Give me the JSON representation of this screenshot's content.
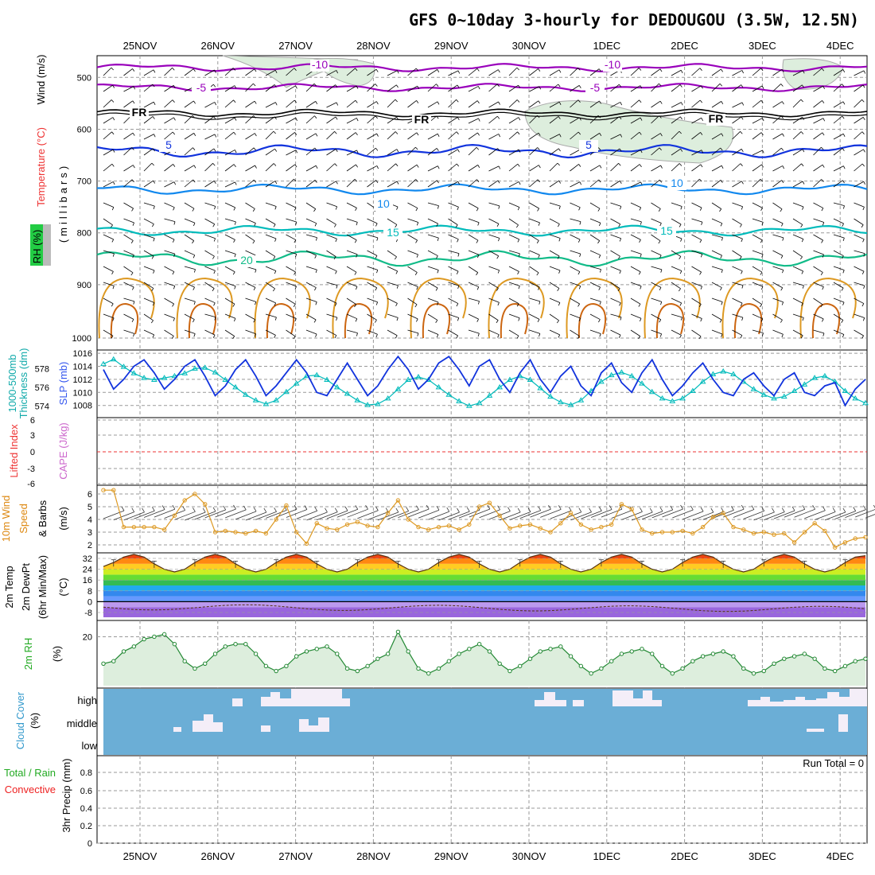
{
  "title": "GFS 0~10day 3-hourly for DEDOUGOU (3.5W, 12.5N)",
  "dates": [
    "25NOV",
    "26NOV",
    "27NOV",
    "28NOV",
    "29NOV",
    "30NOV",
    "1DEC",
    "2DEC",
    "3DEC",
    "4DEC"
  ],
  "colors": {
    "purple": "#9900bb",
    "blue": "#1133dd",
    "lightblue": "#1188ee",
    "teal": "#00bbbb",
    "green": "#11bb88",
    "orange": "#dd9922",
    "darkorange": "#cc6611",
    "rh_fill": "#ddeedd",
    "cloud": "#6baed6",
    "cloud_clear": "#f4eef8",
    "precip_green": "#22aa22",
    "precip_red": "#ee2222"
  },
  "panels": {
    "upper": {
      "axis_labels": [
        {
          "text": "Wind (m/s)",
          "color": "#000000"
        },
        {
          "text": "Temperature (°C)",
          "color": "#ee3333"
        },
        {
          "text": "RH (%)",
          "color": "#000000"
        }
      ],
      "ylabel": "(millibars)",
      "yticks": [
        500,
        600,
        700,
        800,
        900,
        1000
      ],
      "contour_labels": [
        {
          "text": "-10",
          "color": "purple"
        },
        {
          "text": "-10",
          "color": "purple"
        },
        {
          "text": "-5",
          "color": "purple"
        },
        {
          "text": "-5",
          "color": "purple"
        },
        {
          "text": "FR",
          "color": "black"
        },
        {
          "text": "FR",
          "color": "black"
        },
        {
          "text": "FR",
          "color": "black"
        },
        {
          "text": "5",
          "color": "blue"
        },
        {
          "text": "5",
          "color": "blue"
        },
        {
          "text": "10",
          "color": "lightblue"
        },
        {
          "text": "10",
          "color": "lightblue"
        },
        {
          "text": "15",
          "color": "teal"
        },
        {
          "text": "15",
          "color": "teal"
        },
        {
          "text": "20",
          "color": "green"
        }
      ]
    },
    "slp": {
      "axis_labels": [
        {
          "text": "1000-500mb",
          "color": "#11aaaa"
        },
        {
          "text": "Thickness (dm)",
          "color": "#11aaaa"
        },
        {
          "text": "SLP (mb)",
          "color": "#3355ee"
        }
      ],
      "left_ticks": [
        574,
        576,
        578
      ],
      "right_ticks": [
        1008,
        1010,
        1012,
        1014,
        1016
      ]
    },
    "cape": {
      "axis_labels": [
        {
          "text": "Lifted Index",
          "color": "#ee3333"
        },
        {
          "text": "CAPE (J/kg)",
          "color": "#cc66cc"
        }
      ],
      "yticks": [
        "6",
        "3",
        "0",
        "-3",
        "-6"
      ]
    },
    "wind10": {
      "axis_labels": [
        {
          "text": "10m Wind",
          "color": "#dd8811"
        },
        {
          "text": "Speed",
          "color": "#dd8811"
        },
        {
          "text": "& Barbs",
          "color": "#000000"
        },
        {
          "text": "(m/s)",
          "color": "#000000"
        }
      ],
      "yticks": [
        2,
        3,
        4,
        5,
        6
      ]
    },
    "temp": {
      "axis_labels": [
        {
          "text": "2m Temp",
          "color": "#000000"
        },
        {
          "text": "2m DewPt",
          "color": "#000000"
        },
        {
          "text": "(6hr Min/Max)",
          "color": "#000000"
        },
        {
          "text": "(°C)",
          "color": "#000000"
        }
      ],
      "yticks": [
        "-8",
        "0",
        "8",
        "16",
        "24",
        "32"
      ]
    },
    "rh": {
      "axis_labels": [
        {
          "text": "2m RH",
          "color": "#22aa22"
        },
        {
          "text": "(%)",
          "color": "#000000"
        }
      ],
      "yticks": [
        20
      ]
    },
    "cloud": {
      "axis_labels": [
        {
          "text": "Cloud Cover",
          "color": "#3399cc"
        },
        {
          "text": "(%)",
          "color": "#000000"
        }
      ],
      "levels": [
        "high",
        "middle",
        "low"
      ]
    },
    "precip": {
      "axis_labels": [
        {
          "text": "Total / Rain",
          "color": "#22aa22"
        },
        {
          "text": "Convective",
          "color": "#ee2222"
        },
        {
          "text": "3hr Precip (mm)",
          "color": "#000000"
        }
      ],
      "yticks": [
        "0",
        "0.2",
        "0.4",
        "0.6",
        "0.8"
      ],
      "run_total": "Run Total = 0"
    }
  },
  "chart_data": {
    "type": "line",
    "x": [
      "25NOV 00",
      "25NOV 03",
      "25NOV 06",
      "25NOV 09",
      "25NOV 12",
      "25NOV 15",
      "25NOV 18",
      "25NOV 21",
      "26NOV 00",
      "26NOV 03",
      "26NOV 06",
      "26NOV 09",
      "26NOV 12",
      "26NOV 15",
      "26NOV 18",
      "26NOV 21",
      "27NOV 00",
      "27NOV 03",
      "27NOV 06",
      "27NOV 09",
      "27NOV 12",
      "27NOV 15",
      "27NOV 18",
      "27NOV 21",
      "28NOV 00",
      "28NOV 03",
      "28NOV 06",
      "28NOV 09",
      "28NOV 12",
      "28NOV 15",
      "28NOV 18",
      "28NOV 21",
      "29NOV 00",
      "29NOV 03",
      "29NOV 06",
      "29NOV 09",
      "29NOV 12",
      "29NOV 15",
      "29NOV 18",
      "29NOV 21",
      "30NOV 00",
      "30NOV 03",
      "30NOV 06",
      "30NOV 09",
      "30NOV 12",
      "30NOV 15",
      "30NOV 18",
      "30NOV 21",
      "1DEC 00",
      "1DEC 03",
      "1DEC 06",
      "1DEC 09",
      "1DEC 12",
      "1DEC 15",
      "1DEC 18",
      "1DEC 21",
      "2DEC 00",
      "2DEC 03",
      "2DEC 06",
      "2DEC 09",
      "2DEC 12",
      "2DEC 15",
      "2DEC 18",
      "2DEC 21",
      "3DEC 00",
      "3DEC 03",
      "3DEC 06",
      "3DEC 09",
      "3DEC 12",
      "3DEC 15",
      "3DEC 18",
      "3DEC 21",
      "4DEC 00",
      "4DEC 03",
      "4DEC 06",
      "4DEC 09"
    ],
    "series": [
      {
        "name": "SLP (mb)",
        "values": [
          1013.5,
          1010.5,
          1012,
          1014,
          1015,
          1013,
          1010.5,
          1012,
          1014,
          1015,
          1012.5,
          1009.5,
          1011,
          1013.5,
          1015,
          1012.5,
          1009.5,
          1011,
          1013,
          1015,
          1013,
          1010,
          1009.5,
          1012,
          1014.5,
          1012,
          1009.5,
          1011,
          1013.5,
          1015.5,
          1013.5,
          1010.5,
          1012,
          1014.5,
          1015.5,
          1013.5,
          1011,
          1014,
          1015,
          1012,
          1010,
          1013,
          1015,
          1012,
          1010,
          1012.5,
          1014,
          1011,
          1009.5,
          1013,
          1014.5,
          1011.5,
          1010,
          1013,
          1015,
          1012,
          1009.5,
          1011,
          1013,
          1014.5,
          1012,
          1010,
          1009.5,
          1012,
          1013,
          1011,
          1009.5,
          1012,
          1013,
          1010,
          1009.5,
          1011,
          1011.5,
          1008,
          1010.5,
          1012
        ]
      },
      {
        "name": "1000-500mb Thickness (dm)",
        "values": [
          578.5,
          579,
          578.2,
          577.5,
          577,
          576.8,
          577,
          577.2,
          577.5,
          578,
          578.1,
          577.6,
          576.8,
          576,
          575.2,
          574.6,
          574.2,
          574.6,
          575.5,
          576.4,
          577.2,
          577.3,
          576.8,
          576,
          575.3,
          574.6,
          574.1,
          574.2,
          574.8,
          575.8,
          576.8,
          577.1,
          576.8,
          576,
          575.2,
          574.5,
          574.0,
          574.3,
          575.1,
          576.0,
          576.8,
          577.2,
          576.8,
          575.9,
          575.0,
          574.4,
          574.1,
          574.6,
          575.6,
          576.6,
          577.3,
          577.6,
          577.2,
          576.4,
          575.5,
          574.8,
          574.5,
          574.8,
          575.6,
          576.6,
          577.4,
          577.7,
          577.4,
          576.6,
          575.8,
          575.2,
          574.8,
          575.0,
          575.6,
          576.3,
          577.0,
          577.2,
          576.6,
          575.6,
          574.8,
          574.3
        ]
      },
      {
        "name": "10m Wind Speed (m/s)",
        "values": [
          6.3,
          6.3,
          3.4,
          3.4,
          3.4,
          3.4,
          3.2,
          4.3,
          5.5,
          6.0,
          5.2,
          3.0,
          3.1,
          3.0,
          2.9,
          3.1,
          2.9,
          4.0,
          5.1,
          3.0,
          2.1,
          3.7,
          3.3,
          3.2,
          3.6,
          3.8,
          3.5,
          3.4,
          4.5,
          5.5,
          4.0,
          3.4,
          3.2,
          3.4,
          3.5,
          3.2,
          3.6,
          5.0,
          5.3,
          4.3,
          3.3,
          3.5,
          3.6,
          3.3,
          3.0,
          3.7,
          4.5,
          3.6,
          3.2,
          3.4,
          3.6,
          5.2,
          4.8,
          3.2,
          2.9,
          3.0,
          3.0,
          3.1,
          2.9,
          3.4,
          4.2,
          4.5,
          3.4,
          3.2,
          2.9,
          3.0,
          2.8,
          2.9,
          2.2,
          3.0,
          3.7,
          3.1,
          1.8,
          2.2,
          2.5,
          2.6
        ]
      },
      {
        "name": "2m Temp (°C)",
        "values": [
          26,
          29,
          33,
          35,
          33,
          28,
          24,
          22,
          24,
          29,
          33,
          35,
          33,
          28,
          24,
          22,
          24,
          29,
          33,
          35,
          33,
          28,
          24,
          22,
          24,
          29,
          33,
          35,
          33,
          28,
          24,
          22,
          24,
          29,
          33,
          35,
          33,
          28,
          24,
          22,
          24,
          29,
          33,
          35,
          33,
          28,
          24,
          22,
          24,
          29,
          33,
          35,
          33,
          28,
          24,
          22,
          24,
          29,
          33,
          35,
          33,
          28,
          24,
          22,
          24,
          29,
          33,
          35,
          33,
          28,
          24,
          22,
          24,
          29,
          33,
          34
        ]
      },
      {
        "name": "2m RH (%)",
        "values": [
          9,
          10,
          14,
          16,
          19,
          20,
          21,
          17,
          10,
          7,
          9,
          13,
          16,
          17,
          17,
          13,
          8,
          6,
          8,
          12,
          14,
          15,
          16,
          13,
          7,
          6,
          8,
          11,
          13,
          22,
          14,
          7,
          5,
          7,
          10,
          13,
          15,
          17,
          14,
          9,
          6,
          8,
          11,
          14,
          15,
          16,
          12,
          8,
          5,
          7,
          10,
          13,
          14,
          15,
          13,
          8,
          5,
          7,
          10,
          12,
          13,
          14,
          12,
          7,
          5,
          6,
          9,
          11,
          12,
          13,
          11,
          7,
          6,
          8,
          10,
          11
        ]
      }
    ],
    "cloud_cover": {
      "high": "mostly clear with breaks on 26-27NOV, 30NOV-1DEC and 3-4DEC",
      "middle": "scattered 26-27NOV and 4DEC",
      "low": "clear"
    },
    "precip_total": 0,
    "ylim_slp": [
      1006.5,
      1016.5
    ],
    "ylim_thickness": [
      573,
      580
    ]
  }
}
